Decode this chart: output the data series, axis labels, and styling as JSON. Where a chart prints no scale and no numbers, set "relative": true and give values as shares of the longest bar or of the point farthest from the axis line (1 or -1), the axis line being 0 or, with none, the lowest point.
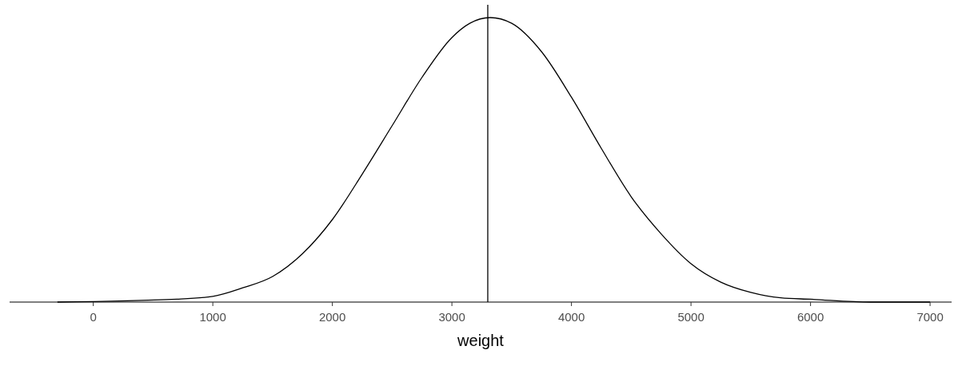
{
  "chart_data": {
    "type": "line",
    "relative": true,
    "xlabel": "weight",
    "xlim": [
      -700,
      7180
    ],
    "xticks": [
      0,
      1000,
      2000,
      3000,
      4000,
      5000,
      6000,
      7000
    ],
    "line_style": "solid",
    "x": [
      -300,
      700,
      1000,
      1250,
      1500,
      1750,
      2000,
      2250,
      2500,
      2750,
      3000,
      3150,
      3320,
      3500,
      3750,
      4000,
      4250,
      4500,
      4750,
      5000,
      5250,
      5500,
      5750,
      6000,
      6500,
      7000
    ],
    "series": [
      {
        "color": "#000000",
        "values": [
          0,
          0.01,
          0.02,
          0.05,
          0.09,
          0.17,
          0.29,
          0.45,
          0.62,
          0.79,
          0.93,
          0.98,
          1,
          0.98,
          0.88,
          0.72,
          0.54,
          0.37,
          0.24,
          0.135,
          0.07,
          0.034,
          0.015,
          0.01,
          0,
          0
        ]
      }
    ],
    "ref_lines": [
      {
        "axis": "x",
        "value": 3300,
        "color": "#000000"
      }
    ]
  }
}
